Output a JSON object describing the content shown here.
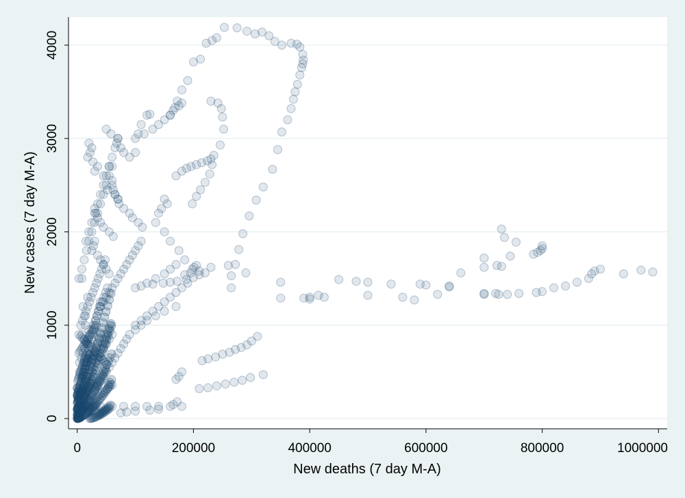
{
  "chart_data": {
    "type": "scatter",
    "title": "",
    "xlabel": "New deaths (7 day M-A)",
    "ylabel": "New cases (7 day M-A)",
    "xlim": [
      -15000,
      1015000
    ],
    "ylim": [
      -110,
      4300
    ],
    "x_ticks": [
      0,
      200000,
      400000,
      600000,
      800000,
      1000000
    ],
    "x_tick_labels": [
      "0",
      "200000",
      "400000",
      "600000",
      "800000",
      "1000000"
    ],
    "y_ticks": [
      0,
      1000,
      2000,
      3000,
      4000
    ],
    "y_tick_labels": [
      "0",
      "1000",
      "2000",
      "3000",
      "4000"
    ],
    "grid": "horizontal",
    "legend": "none",
    "colors": {
      "background": "#eaf2f3",
      "plot_background": "#ffffff",
      "marker": "#1a476f",
      "gridline": "#eaf2f3"
    },
    "series": [
      {
        "x": [
          253000,
          275000,
          292000,
          306000,
          318000,
          330000,
          340000,
          352000,
          368000,
          378000,
          383000,
          388000,
          389000,
          388000,
          386000,
          383000,
          379000,
          375000,
          372000,
          368000,
          362000,
          352000,
          345000,
          336000,
          320000,
          308000,
          296000,
          285000,
          278000,
          272000,
          265000,
          240000,
          232000,
          222000,
          212000,
          200000,
          190000,
          180000,
          172000,
          168000,
          160000,
          230000,
          242000,
          248000,
          250000,
          252000,
          246000,
          235000,
          224000,
          214000,
          205000,
          196000,
          188000,
          180000,
          170000,
          230000,
          232000,
          228000,
          220000,
          212000,
          205000,
          198000,
          265000,
          290000,
          350000,
          400000,
          425000,
          450000,
          480000,
          500000,
          540000,
          560000,
          580000,
          600000,
          620000,
          640000,
          660000,
          700000,
          720000,
          740000,
          760000,
          790000,
          800000,
          820000,
          840000,
          860000,
          880000,
          885000,
          890000,
          900000,
          940000,
          970000,
          990000,
          730000,
          735000,
          730000,
          755000,
          745000,
          722000,
          700000,
          700000,
          800000,
          800000,
          797000,
          792000,
          785000,
          350000,
          390000,
          400000,
          415000,
          500000,
          590000,
          640000,
          700000,
          725000,
          310000,
          300000,
          292000,
          282000,
          272000,
          262000,
          250000,
          238000,
          225000,
          215000,
          320000,
          298000,
          284000,
          270000,
          255000,
          240000,
          225000,
          210000,
          260000,
          230000,
          220000,
          210000,
          200000,
          188000,
          172000,
          160000,
          148000,
          130000,
          110000,
          205000,
          201000,
          198000,
          210000,
          195000,
          185000,
          180000,
          175000,
          170000,
          172000,
          165000,
          140000,
          125000,
          100000,
          85000,
          75000,
          185000,
          170000,
          160000,
          150000,
          135000,
          120000,
          100000,
          20000,
          25000,
          22000,
          18000,
          27000,
          35000,
          30000,
          45000,
          55000,
          60000,
          52000,
          65000,
          70000,
          50000,
          58000,
          70000,
          68000,
          75000,
          80000,
          90000,
          100000,
          105000,
          110000,
          120000,
          125000,
          100000,
          115000,
          130000,
          140000,
          150000,
          160000,
          165000,
          175000,
          180000,
          60000,
          62000,
          65000,
          70000,
          72000,
          80000,
          90000,
          95000,
          105000,
          112000,
          30000,
          32000,
          35000,
          40000,
          45000,
          55000,
          62000,
          150000,
          155000,
          145000,
          140000,
          135000,
          150000,
          160000,
          175000,
          30000,
          28000,
          25000,
          35000,
          40000,
          45000,
          50000,
          55000,
          10000,
          14000,
          18000,
          12000,
          16000,
          20000,
          8000,
          22000,
          26000,
          6000,
          10000,
          14000,
          4000,
          18000,
          8000,
          12000,
          20000,
          24000,
          28000,
          6000,
          40000,
          45000,
          50000,
          55000,
          60000,
          65000,
          70000,
          75000,
          80000,
          85000,
          90000,
          95000,
          100000,
          105000,
          110000,
          5000,
          10000,
          15000,
          20000,
          25000,
          30000,
          35000,
          40000,
          45000,
          50000,
          55000,
          60000,
          65000,
          70000,
          75000,
          80000,
          85000,
          90000,
          100000,
          110000,
          120000,
          135000,
          150000,
          170000,
          2000,
          3000,
          4000,
          5000,
          6000,
          8000,
          10000,
          12000,
          15000,
          18000,
          22000,
          26000,
          30000,
          35000,
          40000,
          45000,
          50000,
          55000,
          60000,
          1000,
          2000,
          3000,
          4000,
          5000,
          7000,
          9000,
          11000,
          14000,
          17000,
          20000,
          24000,
          28000,
          3000,
          6000,
          9000,
          12000,
          15000,
          18000,
          21000,
          24000,
          27000,
          30000,
          33000,
          36000,
          39000,
          42000,
          45000,
          48000,
          51000,
          5000,
          8000,
          11000,
          14000,
          17000,
          20000,
          23000,
          26000,
          29000,
          32000,
          35000,
          38000,
          41000,
          44000,
          47000,
          50000,
          53000,
          56000,
          4000,
          7000,
          10000,
          13000,
          16000,
          19000,
          22000,
          25000,
          28000,
          31000,
          34000,
          37000,
          40000,
          43000,
          46000,
          49000,
          52000,
          6000,
          9000,
          12000,
          15000,
          18000,
          21000,
          24000,
          27000,
          30000,
          33000,
          36000,
          39000,
          42000,
          45000,
          48000,
          2000,
          4000,
          6000,
          8000,
          10000,
          12000,
          14000,
          16000,
          18000,
          20000,
          22000,
          24000,
          26000,
          28000,
          30000,
          32000,
          34000,
          36000,
          38000,
          40000,
          3000,
          5000,
          7000,
          9000,
          11000,
          13000,
          15000,
          17000,
          19000,
          21000,
          23000,
          25000,
          27000,
          29000,
          31000,
          33000,
          1000,
          2000,
          3000,
          4000,
          5000,
          6000,
          7000,
          8000,
          9000,
          10000,
          11000,
          12000,
          13000,
          14000,
          15000,
          8000,
          12000,
          16000,
          20000,
          24000,
          28000,
          32000,
          36000,
          40000,
          44000,
          48000,
          52000,
          56000,
          60000,
          15000,
          20000,
          25000,
          30000,
          35000,
          40000,
          45000,
          50000,
          55000,
          60000,
          65000,
          70000,
          100000,
          110000,
          120000,
          130000,
          140000,
          150000,
          160000,
          170000,
          180000,
          190000,
          20000,
          40000,
          60000,
          80000,
          100000,
          120000,
          140000,
          160000,
          180000,
          3000,
          8000,
          12000,
          16000,
          20000,
          25000,
          30000,
          35000,
          40000,
          45000,
          50000,
          55000,
          60000
        ],
        "y": [
          4190,
          4185,
          4150,
          4120,
          4140,
          4100,
          4040,
          4000,
          4020,
          4010,
          3980,
          3900,
          3840,
          3800,
          3760,
          3680,
          3580,
          3500,
          3420,
          3320,
          3200,
          3070,
          2880,
          2670,
          2480,
          2340,
          2170,
          1980,
          1810,
          1650,
          1530,
          4080,
          4050,
          4020,
          3850,
          3820,
          3620,
          3520,
          3400,
          3330,
          3250,
          3400,
          3380,
          3320,
          3230,
          3100,
          2930,
          2820,
          2760,
          2740,
          2720,
          2700,
          2680,
          2650,
          2600,
          2780,
          2720,
          2620,
          2530,
          2450,
          2380,
          2300,
          1400,
          1560,
          1460,
          1280,
          1300,
          1490,
          1470,
          1460,
          1440,
          1300,
          1270,
          1430,
          1330,
          1410,
          1560,
          1330,
          1340,
          1330,
          1340,
          1350,
          1360,
          1400,
          1420,
          1460,
          1500,
          1550,
          1580,
          1600,
          1550,
          1590,
          1570,
          2030,
          1940,
          1630,
          1890,
          1740,
          1640,
          1620,
          1720,
          1850,
          1820,
          1800,
          1780,
          1760,
          1290,
          1290,
          1300,
          1320,
          1320,
          1440,
          1420,
          1340,
          1330,
          880,
          830,
          790,
          760,
          740,
          710,
          690,
          660,
          640,
          620,
          470,
          440,
          410,
          390,
          370,
          350,
          330,
          320,
          1640,
          1620,
          1560,
          1540,
          1510,
          1490,
          1470,
          1460,
          1450,
          1440,
          1420,
          1640,
          1620,
          1600,
          1580,
          1560,
          1540,
          500,
          450,
          420,
          180,
          150,
          100,
          90,
          80,
          70,
          60,
          1700,
          1650,
          1600,
          1550,
          1500,
          1450,
          1400,
          2950,
          2900,
          2850,
          2800,
          2750,
          2700,
          2650,
          2600,
          2700,
          2550,
          2450,
          2400,
          2350,
          3100,
          3050,
          3000,
          2950,
          2900,
          2850,
          2800,
          2850,
          3050,
          3150,
          3250,
          3260,
          3000,
          3050,
          3100,
          3150,
          3200,
          3250,
          3300,
          3350,
          3380,
          2500,
          2450,
          2400,
          2350,
          2300,
          2250,
          2200,
          2150,
          2100,
          2050,
          2250,
          2200,
          2150,
          2100,
          2050,
          2000,
          1950,
          2350,
          2300,
          2250,
          2200,
          2100,
          2000,
          1900,
          1800,
          1900,
          1850,
          1800,
          1750,
          1700,
          1650,
          1600,
          1550,
          1200,
          1000,
          800,
          600,
          400,
          200,
          900,
          700,
          500,
          300,
          100,
          1100,
          500,
          1300,
          1500,
          850,
          950,
          650,
          450,
          50,
          1200,
          1250,
          1300,
          1350,
          1400,
          1450,
          1500,
          1550,
          1600,
          1650,
          1700,
          1750,
          1800,
          1850,
          1900,
          50,
          100,
          150,
          200,
          250,
          300,
          350,
          400,
          450,
          500,
          550,
          600,
          650,
          700,
          750,
          800,
          850,
          900,
          950,
          1000,
          1050,
          1100,
          1150,
          1200,
          20,
          60,
          100,
          150,
          200,
          250,
          300,
          350,
          400,
          450,
          500,
          550,
          600,
          650,
          700,
          750,
          800,
          850,
          900,
          10,
          30,
          50,
          80,
          110,
          140,
          170,
          200,
          230,
          260,
          290,
          320,
          350,
          900,
          880,
          860,
          840,
          820,
          800,
          780,
          760,
          740,
          720,
          700,
          680,
          660,
          640,
          620,
          600,
          580,
          150,
          200,
          250,
          300,
          350,
          400,
          450,
          500,
          550,
          600,
          650,
          700,
          750,
          800,
          850,
          900,
          950,
          1000,
          600,
          650,
          700,
          750,
          800,
          850,
          900,
          950,
          1000,
          1050,
          1100,
          1150,
          1200,
          1250,
          1300,
          1350,
          1400,
          1000,
          1050,
          1100,
          1150,
          1200,
          1250,
          1300,
          1350,
          1400,
          1450,
          1500,
          1550,
          1600,
          1650,
          1700,
          300,
          350,
          400,
          450,
          500,
          550,
          600,
          650,
          700,
          750,
          800,
          850,
          900,
          950,
          1000,
          1050,
          1100,
          1150,
          1200,
          1250,
          700,
          720,
          740,
          760,
          780,
          800,
          820,
          840,
          860,
          880,
          900,
          920,
          940,
          960,
          980,
          1000,
          400,
          420,
          440,
          460,
          480,
          500,
          520,
          540,
          560,
          580,
          600,
          620,
          640,
          660,
          680,
          100,
          120,
          140,
          160,
          180,
          200,
          220,
          240,
          260,
          280,
          300,
          320,
          340,
          360,
          1900,
          2000,
          2100,
          2200,
          2300,
          2400,
          2500,
          2600,
          2700,
          2800,
          2900,
          3000,
          1000,
          1050,
          1100,
          1150,
          1200,
          1250,
          1300,
          1350,
          1400,
          1450,
          130,
          130,
          130,
          130,
          130,
          130,
          130,
          130,
          130,
          1500,
          1600,
          1700,
          1800,
          1900,
          2000,
          2100,
          2200,
          2300,
          2400,
          2500,
          2600,
          2700
        ]
      }
    ]
  }
}
